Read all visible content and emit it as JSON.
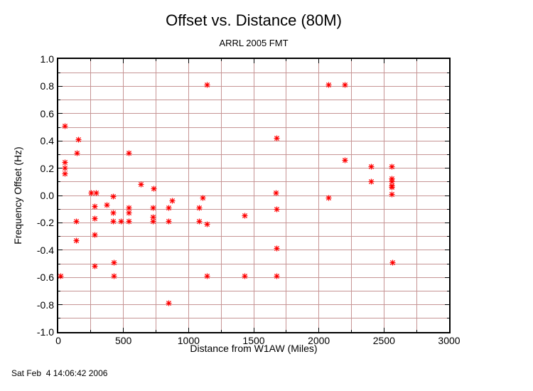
{
  "timestamp": "Sat Feb  4 14:06:42 2006",
  "chart_data": {
    "type": "scatter",
    "title": "Offset vs. Distance (80M)",
    "subtitle": "ARRL 2005 FMT",
    "xlabel": "Distance from W1AW (Miles)",
    "ylabel": "Frequency Offset (Hz)",
    "xlim": [
      0,
      3000
    ],
    "ylim": [
      -1.0,
      1.0
    ],
    "x_tick_labels": [
      "0",
      "500",
      "1000",
      "1500",
      "2000",
      "2500",
      "3000"
    ],
    "y_tick_labels": [
      "1.0",
      "0.8",
      "0.6",
      "0.4",
      "0.2",
      "0.0",
      "-0.2",
      "-0.4",
      "-0.6",
      "-0.8",
      "-1.0"
    ],
    "x_grid_interval": 250,
    "y_grid_interval": 0.1,
    "grid_on": true,
    "grid_color": "#c69494",
    "axis_color": "#000000",
    "marker": "asterisk-icon",
    "marker_color": "#ff0000",
    "legend": "none",
    "points": [
      [
        20,
        -0.59
      ],
      [
        53,
        0.51
      ],
      [
        53,
        0.24
      ],
      [
        53,
        0.2
      ],
      [
        53,
        0.16
      ],
      [
        138,
        -0.19
      ],
      [
        140,
        -0.33
      ],
      [
        142,
        0.31
      ],
      [
        156,
        0.41
      ],
      [
        253,
        0.02
      ],
      [
        291,
        0.02
      ],
      [
        283,
        -0.08
      ],
      [
        283,
        -0.17
      ],
      [
        283,
        -0.29
      ],
      [
        283,
        -0.52
      ],
      [
        376,
        -0.07
      ],
      [
        420,
        -0.13
      ],
      [
        422,
        -0.01
      ],
      [
        424,
        -0.19
      ],
      [
        427,
        -0.49
      ],
      [
        427,
        -0.59
      ],
      [
        482,
        -0.19
      ],
      [
        540,
        -0.09
      ],
      [
        540,
        -0.13
      ],
      [
        540,
        -0.19
      ],
      [
        545,
        0.31
      ],
      [
        635,
        0.08
      ],
      [
        727,
        -0.16
      ],
      [
        727,
        -0.19
      ],
      [
        729,
        -0.09
      ],
      [
        731,
        0.05
      ],
      [
        849,
        -0.09
      ],
      [
        849,
        -0.19
      ],
      [
        849,
        -0.79
      ],
      [
        875,
        -0.04
      ],
      [
        1085,
        -0.09
      ],
      [
        1085,
        -0.19
      ],
      [
        1111,
        -0.02
      ],
      [
        1140,
        -0.59
      ],
      [
        1142,
        -0.21
      ],
      [
        1144,
        0.81
      ],
      [
        1433,
        -0.15
      ],
      [
        1434,
        -0.59
      ],
      [
        1673,
        0.02
      ],
      [
        1675,
        0.42
      ],
      [
        1675,
        -0.1
      ],
      [
        1675,
        -0.39
      ],
      [
        1675,
        -0.59
      ],
      [
        2073,
        0.81
      ],
      [
        2073,
        -0.02
      ],
      [
        2202,
        0.81
      ],
      [
        2202,
        0.26
      ],
      [
        2404,
        0.21
      ],
      [
        2404,
        0.1
      ],
      [
        2562,
        0.21
      ],
      [
        2562,
        0.12
      ],
      [
        2562,
        0.1
      ],
      [
        2562,
        0.07
      ],
      [
        2562,
        0.06
      ],
      [
        2562,
        0.01
      ],
      [
        2564,
        -0.49
      ]
    ]
  }
}
